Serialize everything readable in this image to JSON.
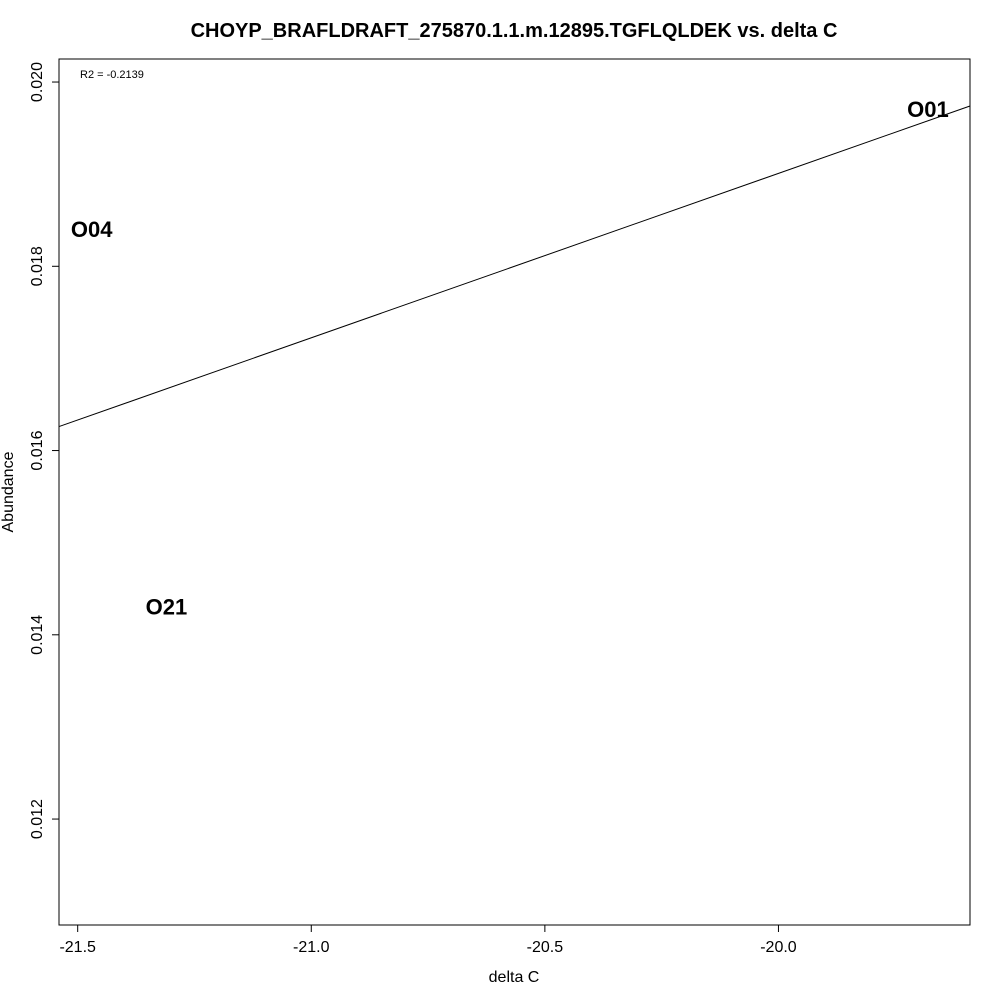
{
  "chart_data": {
    "type": "scatter",
    "title": "CHOYP_BRAFLDRAFT_275870.1.1.m.12895.TGFLQLDEK vs. delta C",
    "xlabel": "delta C",
    "ylabel": "Abundance",
    "xlim": [
      -21.54,
      -19.59
    ],
    "ylim": [
      0.01085,
      0.02025
    ],
    "x_ticks": [
      -21.5,
      -21.0,
      -20.5,
      -20.0
    ],
    "x_tick_labels": [
      "-21.5",
      "-21.0",
      "-20.5",
      "-20.0"
    ],
    "y_ticks": [
      0.012,
      0.014,
      0.016,
      0.018,
      0.02
    ],
    "y_tick_labels": [
      "0.012",
      "0.014",
      "0.016",
      "0.018",
      "0.020"
    ],
    "points": [
      {
        "label": "O01",
        "x": -19.68,
        "y": 0.0197
      },
      {
        "label": "O04",
        "x": -21.47,
        "y": 0.0184
      },
      {
        "label": "O21",
        "x": -21.31,
        "y": 0.0143
      }
    ],
    "fit_line": {
      "x": [
        -21.54,
        -19.59
      ],
      "y": [
        0.01626,
        0.01974
      ]
    },
    "annotation": "R2 = -0.2139",
    "grid": false,
    "legend": "none"
  }
}
